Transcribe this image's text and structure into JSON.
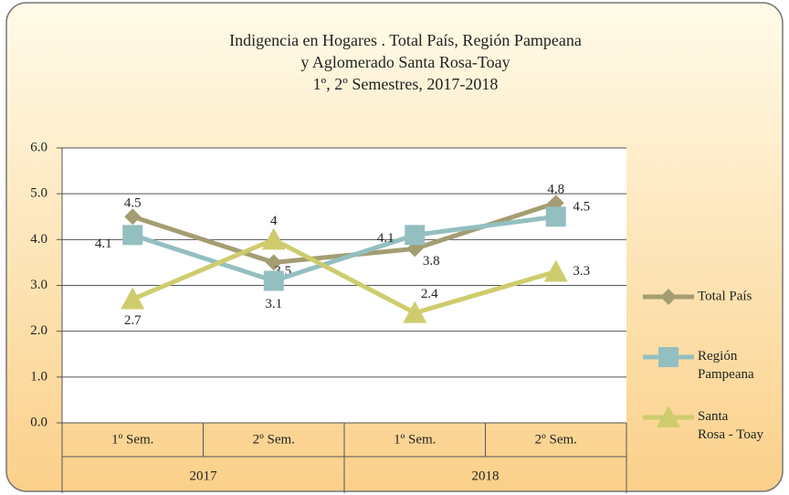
{
  "chart_data": {
    "type": "line",
    "title": [
      "Indigencia en Hogares . Total País, Región Pampeana",
      "y Aglomerado Santa Rosa-Toay",
      "1º, 2º Semestres, 2017-2018"
    ],
    "categories": [
      "1º Sem.",
      "2º Sem.",
      "1º Sem.",
      "2º Sem."
    ],
    "category_groups": [
      "2017",
      "2018"
    ],
    "series": [
      {
        "name": "Total País",
        "color": "#a49d72",
        "marker": "diamond",
        "values": [
          4.5,
          3.5,
          3.8,
          4.8
        ]
      },
      {
        "name": "Región Pampeana",
        "color": "#93bfc0",
        "marker": "square",
        "values": [
          4.1,
          3.1,
          4.1,
          4.5
        ]
      },
      {
        "name": "Santa Rosa - Toay",
        "color": "#cfcc6e",
        "marker": "triangle",
        "values": [
          2.7,
          4.0,
          2.4,
          3.3
        ]
      }
    ],
    "ylim": [
      0,
      6
    ],
    "yticks": [
      {
        "value": 0,
        "label": "0.0"
      },
      {
        "value": 1,
        "label": "1.0"
      },
      {
        "value": 2,
        "label": "2.0"
      },
      {
        "value": 3,
        "label": "3.0"
      },
      {
        "value": 4,
        "label": "4.0"
      },
      {
        "value": 5,
        "label": "5.0"
      },
      {
        "value": 6,
        "label": "6.0"
      }
    ],
    "grid": true,
    "legend": "right"
  }
}
